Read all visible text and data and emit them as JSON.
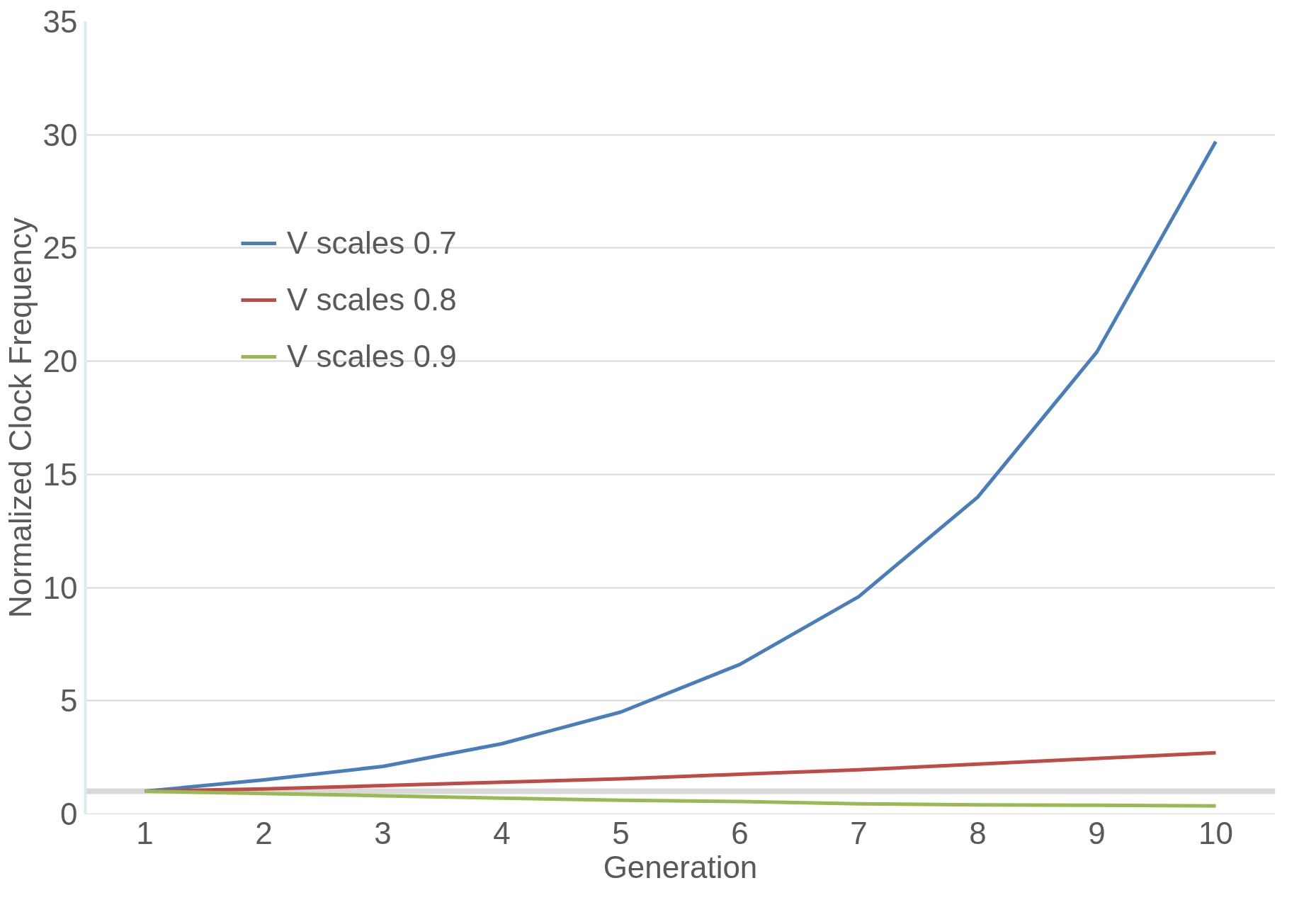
{
  "chart_data": {
    "type": "line",
    "xlabel": "Generation",
    "ylabel": "Normalized Clock Frequency",
    "x": [
      1,
      2,
      3,
      4,
      5,
      6,
      7,
      8,
      9,
      10
    ],
    "series": [
      {
        "name": "V scales 0.7",
        "color": "#4a7ebb",
        "values": [
          1,
          1.5,
          2.1,
          3.1,
          4.5,
          6.6,
          9.6,
          14.0,
          20.4,
          29.7
        ]
      },
      {
        "name": "V scales 0.8",
        "color": "#be4b48",
        "values": [
          1,
          1.1,
          1.25,
          1.4,
          1.55,
          1.75,
          1.95,
          2.2,
          2.45,
          2.7
        ]
      },
      {
        "name": "V scales 0.9",
        "color": "#98b954",
        "values": [
          1,
          0.9,
          0.8,
          0.7,
          0.6,
          0.55,
          0.45,
          0.4,
          0.38,
          0.35
        ]
      }
    ],
    "xlim": [
      0.5,
      10.5
    ],
    "xticks": [
      1,
      2,
      3,
      4,
      5,
      6,
      7,
      8,
      9,
      10
    ],
    "ylim": [
      0,
      35
    ],
    "yticks": [
      0,
      5,
      10,
      15,
      20,
      25,
      30,
      35
    ],
    "ref_lines": [
      {
        "axis": "y",
        "value": 1,
        "color": "#d9d9d9"
      }
    ],
    "grid": "y",
    "legend": "top left",
    "marker": "none",
    "line_style": "solid"
  }
}
